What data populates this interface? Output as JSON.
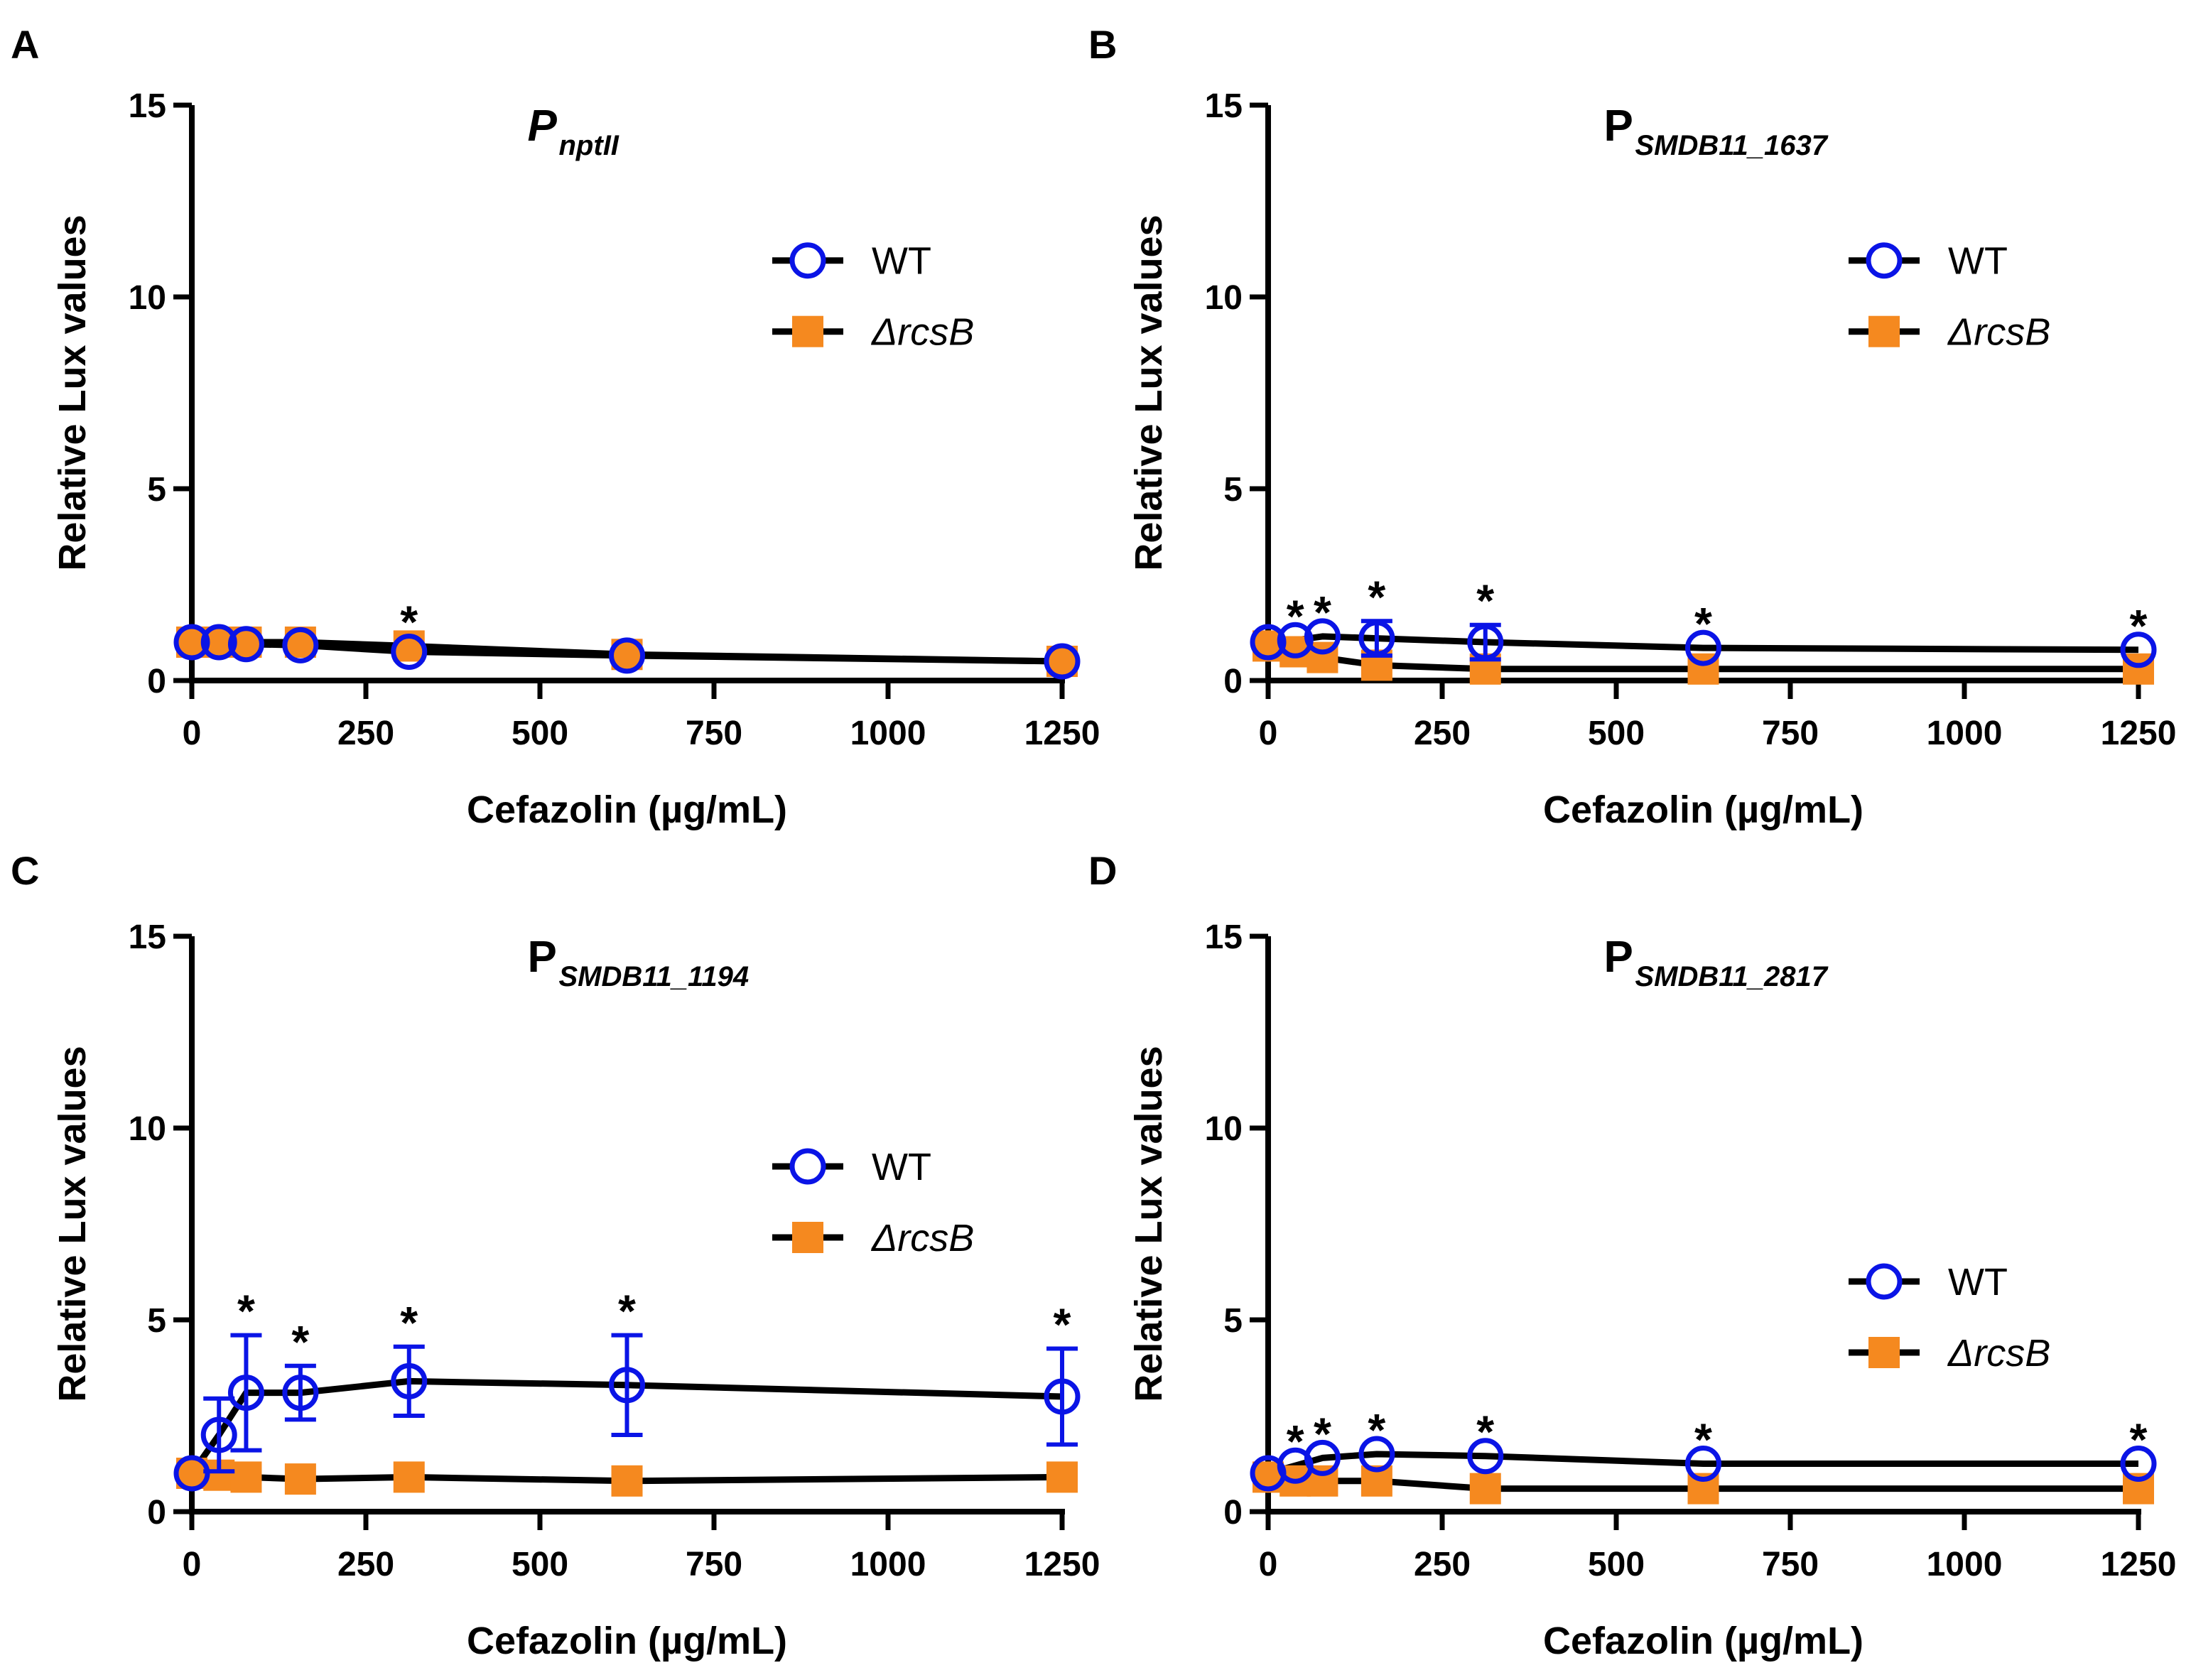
{
  "colors": {
    "wt": "#0a14e6",
    "mutant": "#f5891f",
    "line": "#000000"
  },
  "chart_data": [
    {
      "panel": "A",
      "type": "line",
      "title": "P",
      "title_sub": "nptII",
      "title_italic": true,
      "xlabel": "Cefazolin (µg/mL)",
      "ylabel": "Relative Lux values",
      "xlim": [
        0,
        1250
      ],
      "ylim": [
        0,
        15
      ],
      "xticks": [
        0,
        250,
        500,
        750,
        1000,
        1250
      ],
      "xtick_labels": [
        "0",
        "250",
        "500",
        "750",
        "1000",
        "1250"
      ],
      "yticks": [
        0,
        5,
        10,
        15
      ],
      "ytick_labels": [
        "0",
        "5",
        "10",
        "15"
      ],
      "legend": [
        "WT",
        "ΔrcsB"
      ],
      "legend_pos": [
        0.92,
        0.73
      ],
      "x": [
        0,
        39,
        78,
        156,
        312,
        625,
        1250
      ],
      "series": [
        {
          "name": "WT",
          "values": [
            1.0,
            1.0,
            0.95,
            0.92,
            0.75,
            0.65,
            0.5
          ],
          "err": [
            0,
            0,
            0,
            0,
            0,
            0,
            0
          ]
        },
        {
          "name": "ΔrcsB",
          "values": [
            1.0,
            1.0,
            1.0,
            1.0,
            0.9,
            0.68,
            0.5
          ],
          "err": [
            0,
            0,
            0,
            0,
            0,
            0,
            0
          ]
        }
      ],
      "significance": [
        "",
        "",
        "",
        "",
        "*",
        "",
        ""
      ]
    },
    {
      "panel": "B",
      "type": "line",
      "title": "P",
      "title_sub": "SMDB11_1637",
      "title_italic": false,
      "xlabel": "Cefazolin (µg/mL)",
      "ylabel": "Relative Lux values",
      "xlim": [
        0,
        1250
      ],
      "ylim": [
        0,
        15
      ],
      "xticks": [
        0,
        250,
        500,
        750,
        1000,
        1250
      ],
      "xtick_labels": [
        "0",
        "250",
        "500",
        "750",
        "1000",
        "1250"
      ],
      "yticks": [
        0,
        5,
        10,
        15
      ],
      "ytick_labels": [
        "0",
        "5",
        "10",
        "15"
      ],
      "legend": [
        "WT",
        "ΔrcsB"
      ],
      "legend_pos": [
        0.92,
        0.73
      ],
      "x": [
        0,
        39,
        78,
        156,
        312,
        625,
        1250
      ],
      "series": [
        {
          "name": "WT",
          "values": [
            1.0,
            1.05,
            1.15,
            1.1,
            1.0,
            0.85,
            0.8
          ],
          "err": [
            0,
            0,
            0,
            0.45,
            0.45,
            0,
            0
          ]
        },
        {
          "name": "ΔrcsB",
          "values": [
            0.9,
            0.75,
            0.6,
            0.4,
            0.3,
            0.3,
            0.3
          ],
          "err": [
            0,
            0,
            0,
            0,
            0,
            0,
            0
          ]
        }
      ],
      "significance": [
        "",
        "*",
        "*",
        "*",
        "*",
        "*",
        "*"
      ]
    },
    {
      "panel": "C",
      "type": "line",
      "title": "P",
      "title_sub": "SMDB11_1194",
      "title_italic": false,
      "xlabel": "Cefazolin (µg/mL)",
      "ylabel": "Relative Lux values",
      "xlim": [
        0,
        1250
      ],
      "ylim": [
        0,
        15
      ],
      "xticks": [
        0,
        250,
        500,
        750,
        1000,
        1250
      ],
      "xtick_labels": [
        "0",
        "250",
        "500",
        "750",
        "1000",
        "1250"
      ],
      "yticks": [
        0,
        5,
        10,
        15
      ],
      "ytick_labels": [
        "0",
        "5",
        "10",
        "15"
      ],
      "legend": [
        "WT",
        "ΔrcsB"
      ],
      "legend_pos": [
        0.92,
        0.6
      ],
      "x": [
        0,
        39,
        78,
        156,
        312,
        625,
        1250
      ],
      "series": [
        {
          "name": "WT",
          "values": [
            1.0,
            2.0,
            3.1,
            3.1,
            3.4,
            3.3,
            3.0
          ],
          "err": [
            0,
            0.95,
            1.5,
            0.7,
            0.9,
            1.3,
            1.25
          ]
        },
        {
          "name": "ΔrcsB",
          "values": [
            1.0,
            0.95,
            0.9,
            0.85,
            0.9,
            0.8,
            0.9
          ],
          "err": [
            0,
            0,
            0,
            0,
            0,
            0,
            0
          ]
        }
      ],
      "significance": [
        "",
        "",
        "*",
        "*",
        "*",
        "*",
        "*"
      ]
    },
    {
      "panel": "D",
      "type": "line",
      "title": "P",
      "title_sub": "SMDB11_2817",
      "title_italic": false,
      "xlabel": "Cefazolin (µg/mL)",
      "ylabel": "Relative Lux values",
      "xlim": [
        0,
        1250
      ],
      "ylim": [
        0,
        15
      ],
      "xticks": [
        0,
        250,
        500,
        750,
        1000,
        1250
      ],
      "xtick_labels": [
        "0",
        "250",
        "500",
        "750",
        "1000",
        "1250"
      ],
      "yticks": [
        0,
        5,
        10,
        15
      ],
      "ytick_labels": [
        "0",
        "5",
        "10",
        "15"
      ],
      "legend": [
        "WT",
        "ΔrcsB"
      ],
      "legend_pos": [
        0.92,
        0.4
      ],
      "x": [
        0,
        39,
        78,
        156,
        312,
        625,
        1250
      ],
      "series": [
        {
          "name": "WT",
          "values": [
            1.0,
            1.2,
            1.4,
            1.5,
            1.45,
            1.25,
            1.25
          ],
          "err": [
            0,
            0,
            0,
            0,
            0,
            0,
            0
          ]
        },
        {
          "name": "ΔrcsB",
          "values": [
            0.9,
            0.8,
            0.8,
            0.8,
            0.6,
            0.6,
            0.6
          ],
          "err": [
            0,
            0,
            0,
            0,
            0,
            0,
            0
          ]
        }
      ],
      "significance": [
        "",
        "*",
        "*",
        "*",
        "*",
        "*",
        "*"
      ]
    }
  ]
}
